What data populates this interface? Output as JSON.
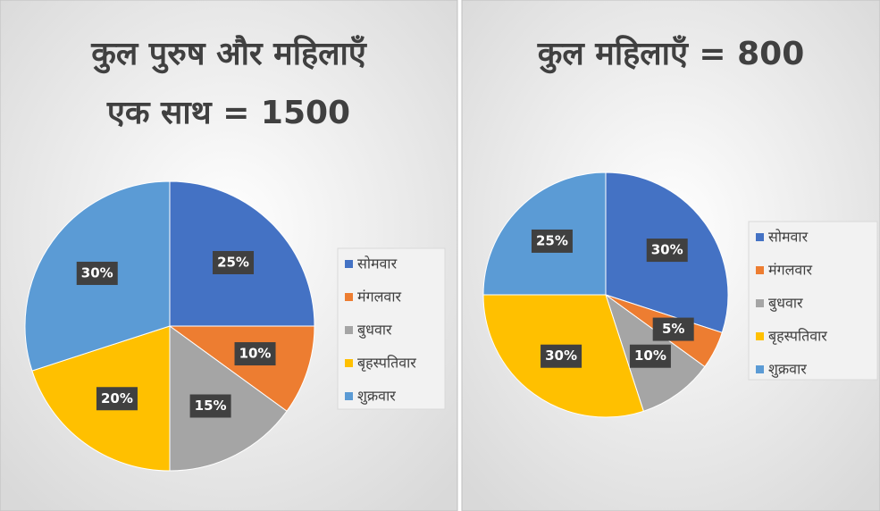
{
  "chart_data": [
    {
      "type": "pie",
      "title": [
        "कुल पुरुष और महिलाएँ",
        "एक साथ  = 1500"
      ],
      "categories": [
        "सोमवार",
        "मंगलवार",
        "बुधवार",
        "बृहस्पतिवार",
        "शुक्रवार"
      ],
      "values": [
        25,
        10,
        15,
        20,
        30
      ],
      "value_labels": [
        "25%",
        "10%",
        "15%",
        "20%",
        "30%"
      ],
      "colors": [
        "#4472c4",
        "#ed7d31",
        "#a5a5a5",
        "#ffc000",
        "#5b9bd5"
      ],
      "legend": "right"
    },
    {
      "type": "pie",
      "title": [
        "कुल महिलाएँ  = 800"
      ],
      "categories": [
        "सोमवार",
        "मंगलवार",
        "बुधवार",
        "बृहस्पतिवार",
        "शुक्रवार"
      ],
      "values": [
        30,
        5,
        10,
        30,
        25
      ],
      "value_labels": [
        "30%",
        "5%",
        "10%",
        "30%",
        "25%"
      ],
      "colors": [
        "#4472c4",
        "#ed7d31",
        "#a5a5a5",
        "#ffc000",
        "#5b9bd5"
      ],
      "legend": "right"
    }
  ]
}
